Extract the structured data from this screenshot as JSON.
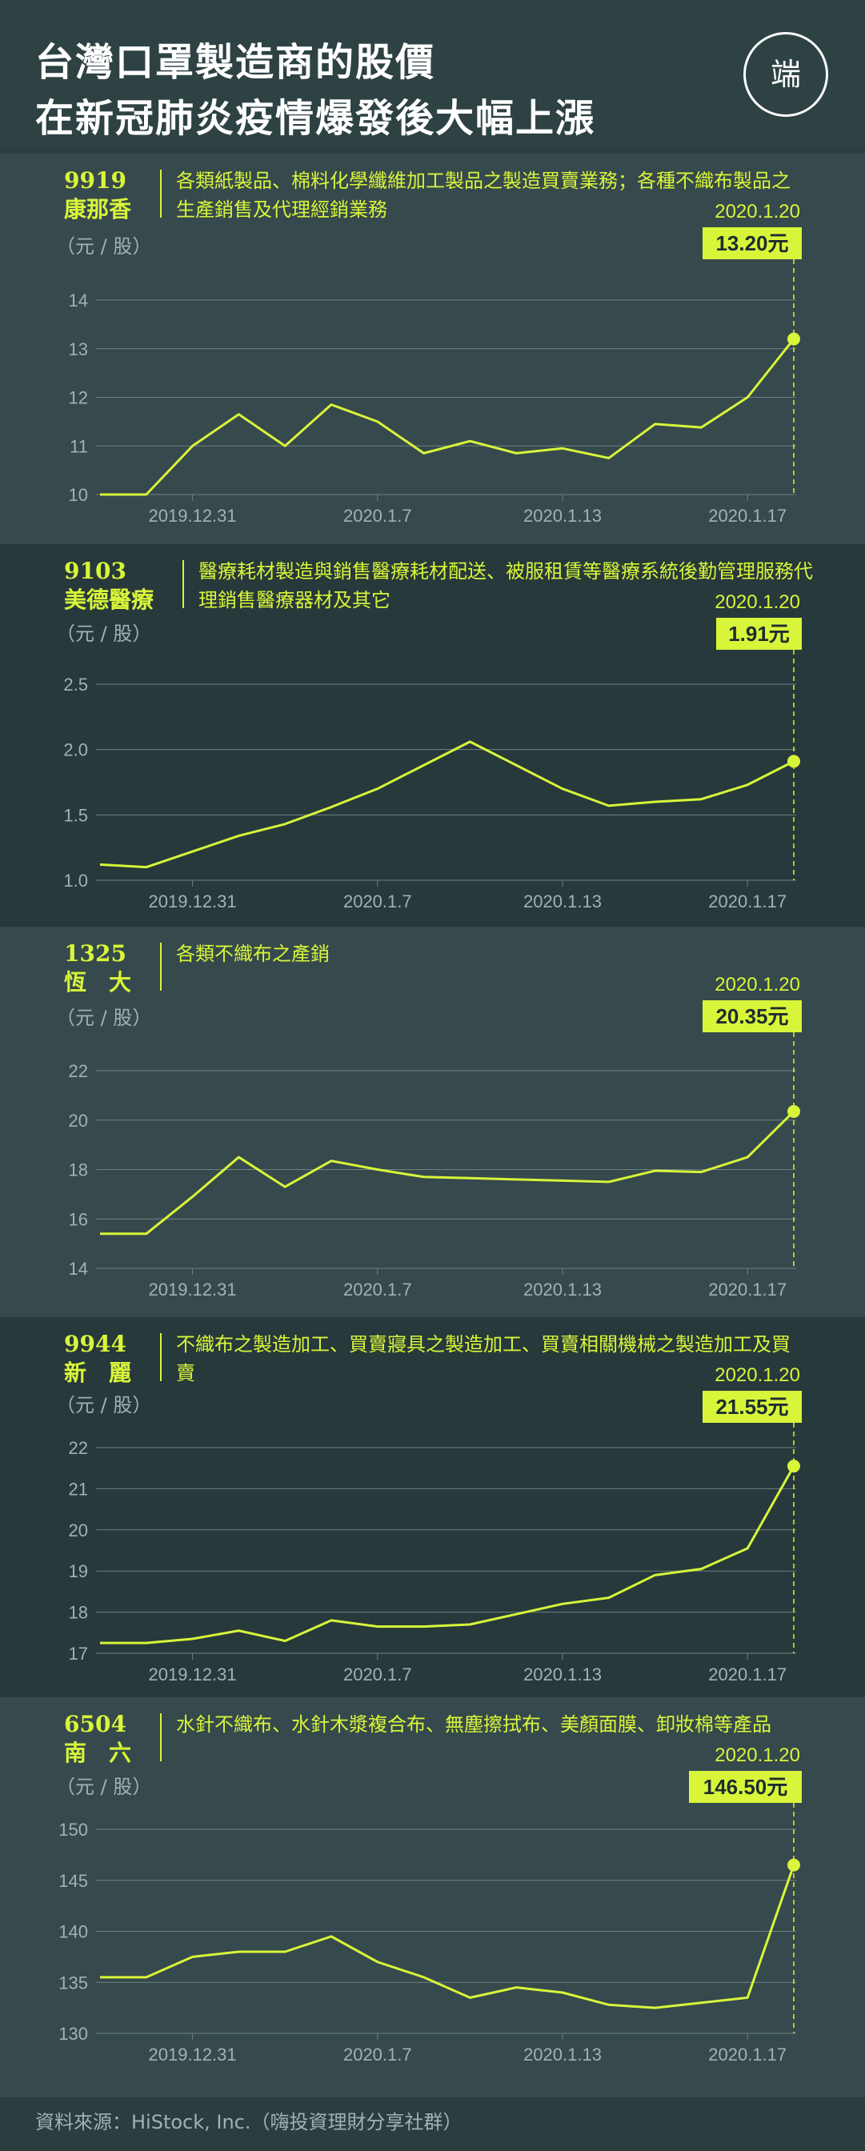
{
  "title": {
    "line1": "台灣口罩製造商的股價",
    "line2": "在新冠肺炎疫情爆發後大幅上漲"
  },
  "logo_text": "端",
  "source": "資料來源：HiStock, Inc.（嗨投資理財分享社群）",
  "colors": {
    "accent": "#d8f53a",
    "background": "#2b3d3f",
    "panel_light": "#36494c",
    "panel_dark": "#27393b",
    "gridline": "#6f8282",
    "axis_text": "#9fb3b3"
  },
  "chart_data": [
    {
      "type": "line",
      "code": "9919",
      "company": "康那香",
      "description": "各類紙製品、棉料化學纖維加工製品之製造買賣業務；各種不織布製品之生產銷售及代理經銷業務",
      "unit": "（元 / 股）",
      "yticks": [
        10,
        11,
        12,
        13,
        14
      ],
      "ylim": [
        10,
        14
      ],
      "xticks": [
        "2019.12.31",
        "2020.1.7",
        "2020.1.13",
        "2020.1.17"
      ],
      "xtick_index": [
        2,
        6,
        10,
        14
      ],
      "values": [
        10.0,
        10.0,
        11.0,
        11.65,
        11.0,
        11.85,
        11.5,
        10.85,
        11.1,
        10.85,
        10.95,
        10.75,
        11.45,
        11.38,
        12.0,
        13.2
      ],
      "last_date": "2020.1.20",
      "last_label": "13.20元"
    },
    {
      "type": "line",
      "code": "9103",
      "company": "美德醫療",
      "description": "醫療耗材製造與銷售醫療耗材配送、被服租賃等醫療系統後勤管理服務代理銷售醫療器材及其它",
      "unit": "（元 / 股）",
      "yticks": [
        1.0,
        1.5,
        2.0,
        2.5
      ],
      "ylim": [
        1.0,
        2.5
      ],
      "xticks": [
        "2019.12.31",
        "2020.1.7",
        "2020.1.13",
        "2020.1.17"
      ],
      "xtick_index": [
        2,
        6,
        10,
        14
      ],
      "values": [
        1.12,
        1.1,
        1.22,
        1.34,
        1.43,
        1.56,
        1.7,
        1.88,
        2.06,
        1.88,
        1.7,
        1.57,
        1.6,
        1.62,
        1.73,
        1.91
      ],
      "last_date": "2020.1.20",
      "last_label": "1.91元"
    },
    {
      "type": "line",
      "code": "1325",
      "company": "恆　大",
      "description": "各類不織布之產銷",
      "unit": "（元 / 股）",
      "yticks": [
        14,
        16,
        18,
        20,
        22
      ],
      "ylim": [
        14,
        22
      ],
      "xticks": [
        "2019.12.31",
        "2020.1.7",
        "2020.1.13",
        "2020.1.17"
      ],
      "xtick_index": [
        2,
        6,
        10,
        14
      ],
      "values": [
        15.4,
        15.4,
        16.9,
        18.5,
        17.3,
        18.35,
        18.0,
        17.7,
        17.65,
        17.6,
        17.55,
        17.5,
        17.95,
        17.9,
        18.5,
        20.35
      ],
      "last_date": "2020.1.20",
      "last_label": "20.35元"
    },
    {
      "type": "line",
      "code": "9944",
      "company": "新　麗",
      "description": "不織布之製造加工、買賣寢具之製造加工、買賣相關機械之製造加工及買賣",
      "unit": "（元 / 股）",
      "yticks": [
        17,
        18,
        19,
        20,
        21,
        22
      ],
      "ylim": [
        17,
        22
      ],
      "xticks": [
        "2019.12.31",
        "2020.1.7",
        "2020.1.13",
        "2020.1.17"
      ],
      "xtick_index": [
        2,
        6,
        10,
        14
      ],
      "values": [
        17.25,
        17.25,
        17.35,
        17.55,
        17.3,
        17.8,
        17.65,
        17.65,
        17.7,
        17.95,
        18.2,
        18.35,
        18.9,
        19.05,
        19.55,
        21.55
      ],
      "last_date": "2020.1.20",
      "last_label": "21.55元"
    },
    {
      "type": "line",
      "code": "6504",
      "company": "南　六",
      "description": "水針不織布、水針木漿複合布、無塵擦拭布、美顏面膜、卸妝棉等產品",
      "unit": "（元 / 股）",
      "yticks": [
        130,
        135,
        140,
        145,
        150
      ],
      "ylim": [
        130,
        150
      ],
      "xticks": [
        "2019.12.31",
        "2020.1.7",
        "2020.1.13",
        "2020.1.17"
      ],
      "xtick_index": [
        2,
        6,
        10,
        14
      ],
      "values": [
        135.5,
        135.5,
        137.5,
        138.0,
        138.0,
        139.5,
        137.0,
        135.5,
        133.5,
        134.5,
        134.0,
        132.8,
        132.5,
        133.0,
        133.5,
        146.5
      ],
      "last_date": "2020.1.20",
      "last_label": "146.50元"
    }
  ]
}
